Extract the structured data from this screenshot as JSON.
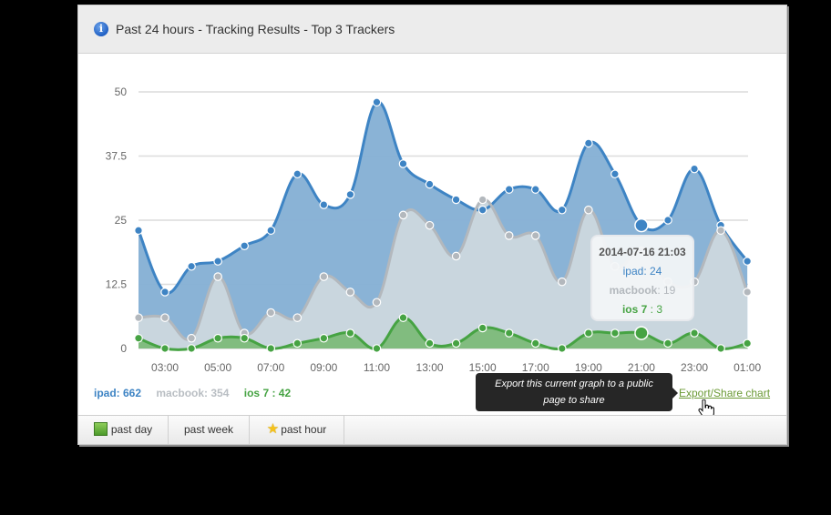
{
  "panel": {
    "title": "Past 24 hours - Tracking Results - Top 3 Trackers",
    "icon": "info-icon"
  },
  "colors": {
    "ipad": "#3e84c4",
    "ipad_fill": "#86b1d5",
    "macbook": "#b3b8bd",
    "macbook_fill": "#c9d6de",
    "ios7": "#46a343",
    "ios7_fill": "#7ebb7c",
    "grid": "#dcdcdc",
    "axis_text": "#666666"
  },
  "chart_data": {
    "type": "area",
    "title": "Past 24 hours - Tracking Results - Top 3 Trackers",
    "xlabel": "",
    "ylabel": "",
    "ylim": [
      0,
      50
    ],
    "yticks": [
      "0",
      "12.5",
      "25",
      "37.5",
      "50"
    ],
    "grid": true,
    "x": [
      "02:00",
      "03:00",
      "04:00",
      "05:00",
      "06:00",
      "07:00",
      "08:00",
      "09:00",
      "10:00",
      "11:00",
      "12:00",
      "13:00",
      "14:00",
      "15:00",
      "16:00",
      "17:00",
      "18:00",
      "19:00",
      "20:00",
      "21:00",
      "22:00",
      "23:00",
      "00:00",
      "01:00"
    ],
    "xtick_labels": [
      "03:00",
      "05:00",
      "07:00",
      "09:00",
      "11:00",
      "13:00",
      "15:00",
      "17:00",
      "19:00",
      "21:00",
      "23:00",
      "01:00"
    ],
    "series": [
      {
        "name": "ipad",
        "values": [
          23,
          11,
          16,
          17,
          20,
          23,
          34,
          28,
          30,
          48,
          36,
          32,
          29,
          27,
          31,
          31,
          27,
          40,
          34,
          24,
          25,
          35,
          24,
          17
        ]
      },
      {
        "name": "macbook",
        "values": [
          6,
          6,
          2,
          14,
          3,
          7,
          6,
          14,
          11,
          9,
          26,
          24,
          18,
          29,
          22,
          22,
          13,
          27,
          16,
          19,
          13,
          13,
          23,
          11
        ]
      },
      {
        "name": "ios 7",
        "values": [
          2,
          0,
          0,
          2,
          2,
          0,
          1,
          2,
          3,
          0,
          6,
          1,
          1,
          4,
          3,
          1,
          0,
          3,
          3,
          3,
          1,
          3,
          0,
          1
        ]
      }
    ],
    "legend_position": "bottom-left"
  },
  "legend": {
    "ipad": "ipad: 662",
    "macbook": "macbook: 354",
    "ios7": "ios 7 : 42"
  },
  "tooltip": {
    "date": "2014-07-16 21:03",
    "ipad_label": "ipad",
    "ipad_value": ": 24",
    "macbook_label": "macbook",
    "macbook_value": ": 19",
    "ios7_label": "ios 7",
    "ios7_value": " : 3",
    "hover_index": 19
  },
  "export": {
    "link_label": "Export/Share chart",
    "tip_line1": "Export this current graph to a public",
    "tip_line2": "page to share"
  },
  "footer": {
    "tabs": [
      {
        "label": "past day",
        "icon": "green-square-icon"
      },
      {
        "label": "past week",
        "icon": ""
      },
      {
        "label": "past hour",
        "icon": "star-icon"
      }
    ]
  }
}
